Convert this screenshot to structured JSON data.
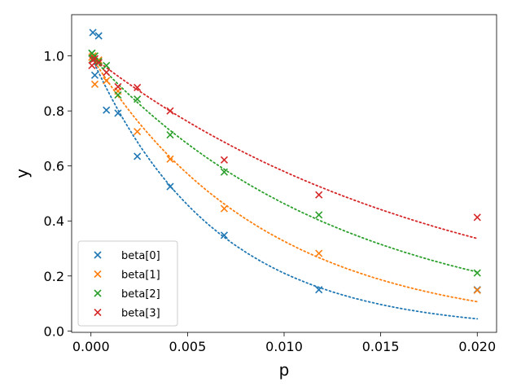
{
  "chart_data": {
    "type": "scatter",
    "title": "",
    "xlabel": "p",
    "ylabel": "y",
    "xlim": [
      -0.001,
      0.021
    ],
    "ylim": [
      -0.005,
      1.15
    ],
    "xticks": [
      0.0,
      0.005,
      0.01,
      0.015,
      0.02
    ],
    "xtick_labels": [
      "0.000",
      "0.005",
      "0.010",
      "0.015",
      "0.020"
    ],
    "yticks": [
      0.0,
      0.2,
      0.4,
      0.6,
      0.8,
      1.0
    ],
    "ytick_labels": [
      "0.0",
      "0.2",
      "0.4",
      "0.6",
      "0.8",
      "1.0"
    ],
    "grid": false,
    "legend_position": "lower-left",
    "series": [
      {
        "name": "beta[0]",
        "color": "#1f77b4",
        "points": [
          [
            5e-05,
            1.01
          ],
          [
            0.0001,
            1.085
          ],
          [
            0.0002,
            0.93
          ],
          [
            0.0004,
            1.073
          ],
          [
            0.0008,
            0.803
          ],
          [
            0.0014,
            0.792
          ],
          [
            0.0024,
            0.635
          ],
          [
            0.0041,
            0.525
          ],
          [
            0.0069,
            0.348
          ],
          [
            0.0118,
            0.15
          ],
          [
            0.02,
            0.15
          ]
        ],
        "fit": {
          "a": 1.0,
          "k": 156
        }
      },
      {
        "name": "beta[1]",
        "color": "#ff7f0e",
        "points": [
          [
            5e-05,
            0.995
          ],
          [
            0.0001,
            1.0
          ],
          [
            0.0002,
            0.897
          ],
          [
            0.0004,
            0.985
          ],
          [
            0.0008,
            0.91
          ],
          [
            0.0014,
            0.872
          ],
          [
            0.0024,
            0.725
          ],
          [
            0.0041,
            0.625
          ],
          [
            0.0069,
            0.445
          ],
          [
            0.0118,
            0.282
          ],
          [
            0.02,
            0.148
          ]
        ],
        "fit": {
          "a": 1.0,
          "k": 112
        }
      },
      {
        "name": "beta[2]",
        "color": "#2ca02c",
        "points": [
          [
            5e-05,
            1.01
          ],
          [
            0.0001,
            0.99
          ],
          [
            0.0002,
            1.0
          ],
          [
            0.0004,
            0.98
          ],
          [
            0.0008,
            0.965
          ],
          [
            0.0014,
            0.858
          ],
          [
            0.0024,
            0.843
          ],
          [
            0.0041,
            0.713
          ],
          [
            0.0069,
            0.578
          ],
          [
            0.0118,
            0.422
          ],
          [
            0.02,
            0.211
          ]
        ],
        "fit": {
          "a": 1.0,
          "k": 77
        }
      },
      {
        "name": "beta[3]",
        "color": "#d62728",
        "points": [
          [
            5e-05,
            0.965
          ],
          [
            0.0001,
            0.985
          ],
          [
            0.0002,
            0.99
          ],
          [
            0.0004,
            0.975
          ],
          [
            0.0008,
            0.94
          ],
          [
            0.0014,
            0.888
          ],
          [
            0.0024,
            0.885
          ],
          [
            0.0041,
            0.8
          ],
          [
            0.0069,
            0.622
          ],
          [
            0.0118,
            0.495
          ],
          [
            0.02,
            0.413
          ]
        ],
        "fit": {
          "a": 1.0,
          "k": 54.5
        }
      }
    ]
  }
}
